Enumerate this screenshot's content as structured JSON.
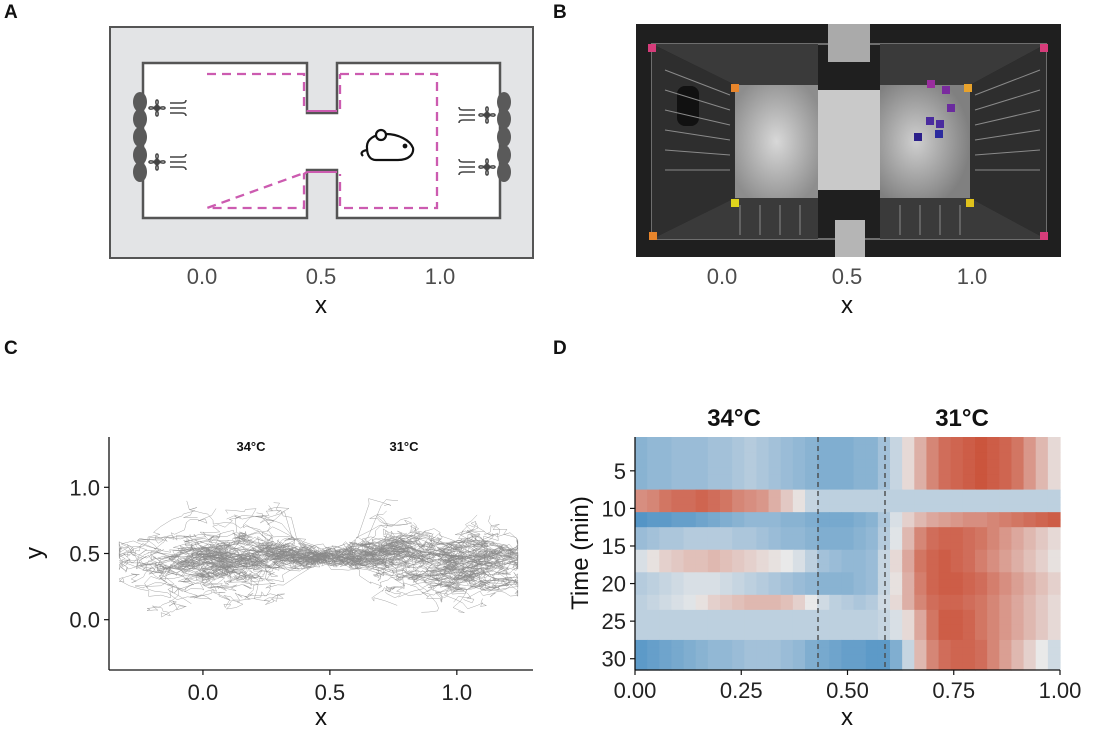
{
  "labels": {
    "a": "A",
    "b": "B",
    "c": "C",
    "d": "D"
  },
  "panel_a": {
    "xlabel": "x",
    "ticks": [
      "0.0",
      "0.5",
      "1.0"
    ],
    "icons": [
      "fan-icon",
      "air-flow-icon",
      "mouse-icon",
      "heater-coil-icon"
    ]
  },
  "panel_b": {
    "xlabel": "x",
    "ticks": [
      "0.0",
      "0.5",
      "1.0"
    ],
    "marker_colors": [
      "#d63c7a",
      "#e8852b",
      "#e0d41c",
      "#7a2b9e",
      "#2b1f8a"
    ]
  },
  "chart_data": [
    {
      "panel": "C",
      "type": "line",
      "description_of_marks": "overlaid mouse trajectories",
      "xlabel": "x",
      "ylabel": "y",
      "xlim": [
        -0.37,
        1.3
      ],
      "ylim": [
        -0.38,
        1.38
      ],
      "x_ticks": [
        "0.0",
        "0.5",
        "1.0"
      ],
      "y_ticks": [
        "0.0",
        "0.5",
        "1.0"
      ],
      "annotations": [
        "34°C",
        "31°C"
      ],
      "line_color": "#888888"
    },
    {
      "panel": "D",
      "type": "heatmap",
      "xlabel": "x",
      "ylabel": "Time (min)",
      "xlim": [
        0,
        1
      ],
      "ylim": [
        1,
        31
      ],
      "x_ticks": [
        "0.00",
        "0.25",
        "0.50",
        "0.75",
        "1.00"
      ],
      "y_ticks": [
        "5",
        "10",
        "15",
        "20",
        "25",
        "30"
      ],
      "annotations": [
        "34°C",
        "31°C"
      ],
      "dashed_lines_x": [
        0.42,
        0.58
      ],
      "color_low": "#3a86c0",
      "color_mid": "#e9e9e9",
      "color_high": "#c8442a",
      "rows": [
        [
          -0.55,
          -0.5,
          -0.5,
          -0.45,
          -0.45,
          -0.45,
          -0.4,
          -0.4,
          -0.35,
          -0.3,
          -0.35,
          -0.4,
          -0.45,
          -0.5,
          -0.55,
          -0.6,
          -0.6,
          -0.6,
          -0.55,
          -0.55,
          -0.4,
          -0.2,
          0.1,
          0.35,
          0.6,
          0.75,
          0.8,
          0.85,
          0.9,
          0.85,
          0.8,
          0.7,
          0.5,
          0.3,
          0.1
        ],
        [
          -0.55,
          -0.5,
          -0.5,
          -0.45,
          -0.45,
          -0.45,
          -0.4,
          -0.4,
          -0.35,
          -0.3,
          -0.35,
          -0.4,
          -0.45,
          -0.5,
          -0.55,
          -0.6,
          -0.6,
          -0.6,
          -0.55,
          -0.55,
          -0.4,
          -0.2,
          0.1,
          0.35,
          0.6,
          0.75,
          0.8,
          0.85,
          0.9,
          0.85,
          0.8,
          0.7,
          0.5,
          0.3,
          0.1
        ],
        [
          0.55,
          0.6,
          0.7,
          0.75,
          0.75,
          0.8,
          0.75,
          0.7,
          0.6,
          0.55,
          0.5,
          0.35,
          0.2,
          0.05,
          -0.2,
          -0.25,
          -0.25,
          -0.25,
          -0.25,
          -0.25,
          -0.25,
          -0.25,
          -0.25,
          -0.25,
          -0.25,
          -0.25,
          -0.25,
          -0.25,
          -0.25,
          -0.25,
          -0.25,
          -0.25,
          -0.25,
          -0.25,
          -0.25
        ],
        [
          -0.85,
          -0.8,
          -0.8,
          -0.75,
          -0.75,
          -0.7,
          -0.65,
          -0.6,
          -0.55,
          -0.5,
          -0.5,
          -0.5,
          -0.55,
          -0.55,
          -0.6,
          -0.65,
          -0.65,
          -0.65,
          -0.6,
          -0.55,
          -0.35,
          -0.1,
          0.15,
          0.3,
          0.4,
          0.45,
          0.5,
          0.55,
          0.55,
          0.6,
          0.65,
          0.7,
          0.75,
          0.8,
          0.85
        ],
        [
          -0.45,
          -0.4,
          -0.35,
          -0.35,
          -0.3,
          -0.3,
          -0.3,
          -0.3,
          -0.35,
          -0.35,
          -0.4,
          -0.45,
          -0.5,
          -0.5,
          -0.55,
          -0.6,
          -0.6,
          -0.6,
          -0.55,
          -0.5,
          -0.3,
          -0.05,
          0.3,
          0.6,
          0.75,
          0.8,
          0.8,
          0.75,
          0.7,
          0.6,
          0.5,
          0.4,
          0.3,
          0.2,
          0.1
        ],
        [
          -0.1,
          0.05,
          0.15,
          0.2,
          0.25,
          0.25,
          0.3,
          0.25,
          0.2,
          0.15,
          0.1,
          0.05,
          0.0,
          -0.1,
          -0.25,
          -0.4,
          -0.45,
          -0.5,
          -0.5,
          -0.45,
          -0.2,
          0.1,
          0.4,
          0.7,
          0.8,
          0.85,
          0.8,
          0.75,
          0.65,
          0.55,
          0.45,
          0.35,
          0.25,
          0.15,
          0.05
        ],
        [
          -0.3,
          -0.25,
          -0.2,
          -0.15,
          -0.1,
          -0.1,
          -0.1,
          -0.15,
          -0.2,
          -0.25,
          -0.3,
          -0.35,
          -0.4,
          -0.45,
          -0.5,
          -0.55,
          -0.55,
          -0.55,
          -0.5,
          -0.45,
          -0.2,
          0.05,
          0.35,
          0.65,
          0.8,
          0.85,
          0.85,
          0.8,
          0.75,
          0.65,
          0.55,
          0.45,
          0.35,
          0.25,
          0.15
        ],
        [
          -0.25,
          -0.2,
          -0.15,
          -0.1,
          -0.05,
          0.05,
          0.15,
          0.2,
          0.25,
          0.3,
          0.3,
          0.3,
          0.25,
          0.15,
          0.0,
          -0.15,
          -0.25,
          -0.3,
          -0.35,
          -0.3,
          -0.15,
          0.1,
          0.35,
          0.6,
          0.75,
          0.8,
          0.8,
          0.75,
          0.7,
          0.6,
          0.5,
          0.4,
          0.3,
          0.2,
          0.1
        ],
        [
          -0.25,
          -0.25,
          -0.25,
          -0.25,
          -0.25,
          -0.25,
          -0.25,
          -0.25,
          -0.25,
          -0.25,
          -0.25,
          -0.25,
          -0.25,
          -0.25,
          -0.25,
          -0.25,
          -0.25,
          -0.25,
          -0.25,
          -0.25,
          -0.2,
          -0.1,
          0.1,
          0.4,
          0.7,
          0.85,
          0.85,
          0.8,
          0.7,
          0.6,
          0.5,
          0.4,
          0.3,
          0.2,
          0.1
        ],
        [
          -0.8,
          -0.75,
          -0.7,
          -0.65,
          -0.6,
          -0.55,
          -0.5,
          -0.5,
          -0.45,
          -0.4,
          -0.4,
          -0.4,
          -0.45,
          -0.5,
          -0.6,
          -0.65,
          -0.7,
          -0.75,
          -0.75,
          -0.8,
          -0.8,
          -0.6,
          -0.2,
          0.3,
          0.6,
          0.75,
          0.8,
          0.8,
          0.75,
          0.6,
          0.45,
          0.3,
          0.15,
          0.0,
          -0.15
        ]
      ]
    }
  ]
}
